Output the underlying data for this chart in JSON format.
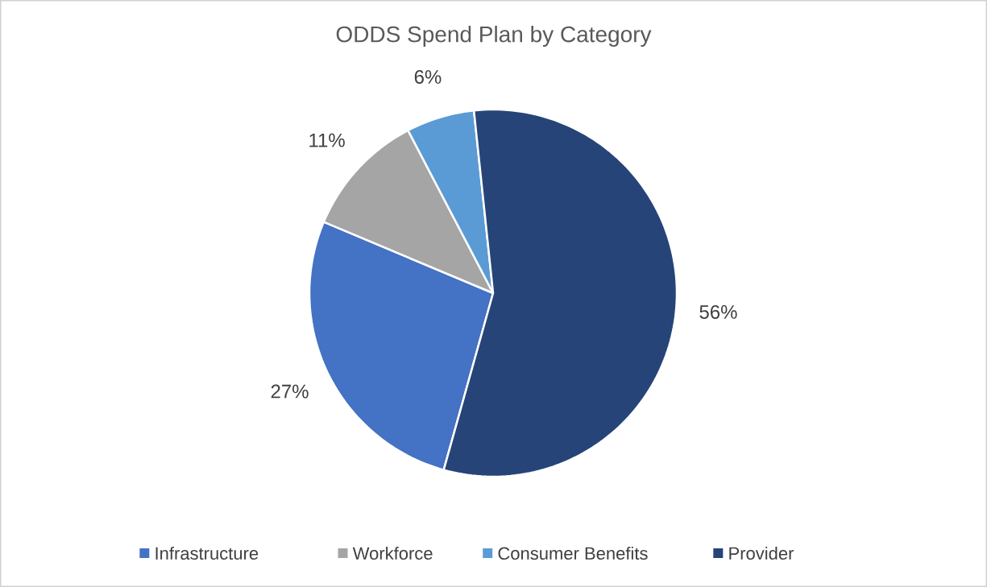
{
  "chart_data": {
    "type": "pie",
    "title": "ODDS Spend Plan by Category",
    "categories": [
      "Infrastructure",
      "Workforce",
      "Consumer Benefits",
      "Provider"
    ],
    "values": [
      27,
      11,
      6,
      56
    ],
    "value_labels": [
      "27%",
      "11%",
      "6%",
      "56%"
    ],
    "colors": [
      "#4472c4",
      "#a5a5a5",
      "#5b9bd5",
      "#264478"
    ],
    "legend": "bottom"
  }
}
